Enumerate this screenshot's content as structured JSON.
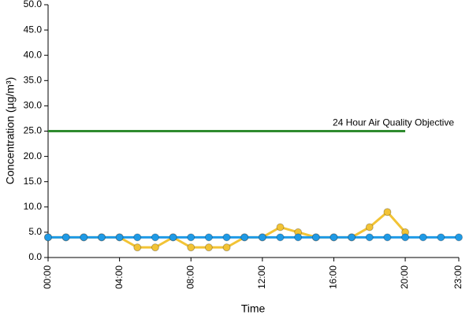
{
  "chart_data": {
    "type": "line",
    "ylabel": "Concentration (µg/m³)",
    "xlabel": "Time",
    "categories": [
      "00:00",
      null,
      null,
      null,
      "04:00",
      null,
      null,
      null,
      "08:00",
      null,
      null,
      null,
      "12:00",
      null,
      null,
      null,
      "16:00",
      null,
      null,
      null,
      "20:00",
      null,
      null,
      "23:00"
    ],
    "series": [
      {
        "name": "24 Hour Air Quality Objective",
        "color": "#2e8b2e",
        "marker": false,
        "values": [
          25,
          25,
          25,
          25,
          25,
          25,
          25,
          25,
          25,
          25,
          25,
          25,
          25,
          25,
          25,
          25,
          25,
          25,
          25,
          25,
          25,
          null,
          null,
          null
        ]
      },
      {
        "color": "#f2c335",
        "marker": true,
        "values": [
          4,
          4,
          4,
          4,
          4,
          2,
          2,
          4,
          2,
          2,
          2,
          4,
          4,
          6,
          5,
          4,
          4,
          4,
          6,
          9,
          5,
          null,
          null,
          null
        ]
      },
      {
        "color": "#1f9ae6",
        "marker": true,
        "values": [
          4,
          4,
          4,
          4,
          4,
          4,
          4,
          4,
          4,
          4,
          4,
          4,
          4,
          4,
          4,
          4,
          4,
          4,
          4,
          4,
          4,
          4,
          4,
          4
        ]
      }
    ],
    "ylim": [
      0,
      50
    ],
    "yticks": [
      {
        "value": 0,
        "label": "0.0"
      },
      {
        "value": 5,
        "label": "5.0"
      },
      {
        "value": 10,
        "label": "10.0"
      },
      {
        "value": 15,
        "label": "15.0"
      },
      {
        "value": 20,
        "label": "20.0"
      },
      {
        "value": 25,
        "label": "25.0"
      },
      {
        "value": 30,
        "label": "30.0"
      },
      {
        "value": 35,
        "label": "35.0"
      },
      {
        "value": 40,
        "label": "40.0"
      },
      {
        "value": 45,
        "label": "45.0"
      },
      {
        "value": 50,
        "label": "50.0"
      }
    ],
    "grid": false
  }
}
